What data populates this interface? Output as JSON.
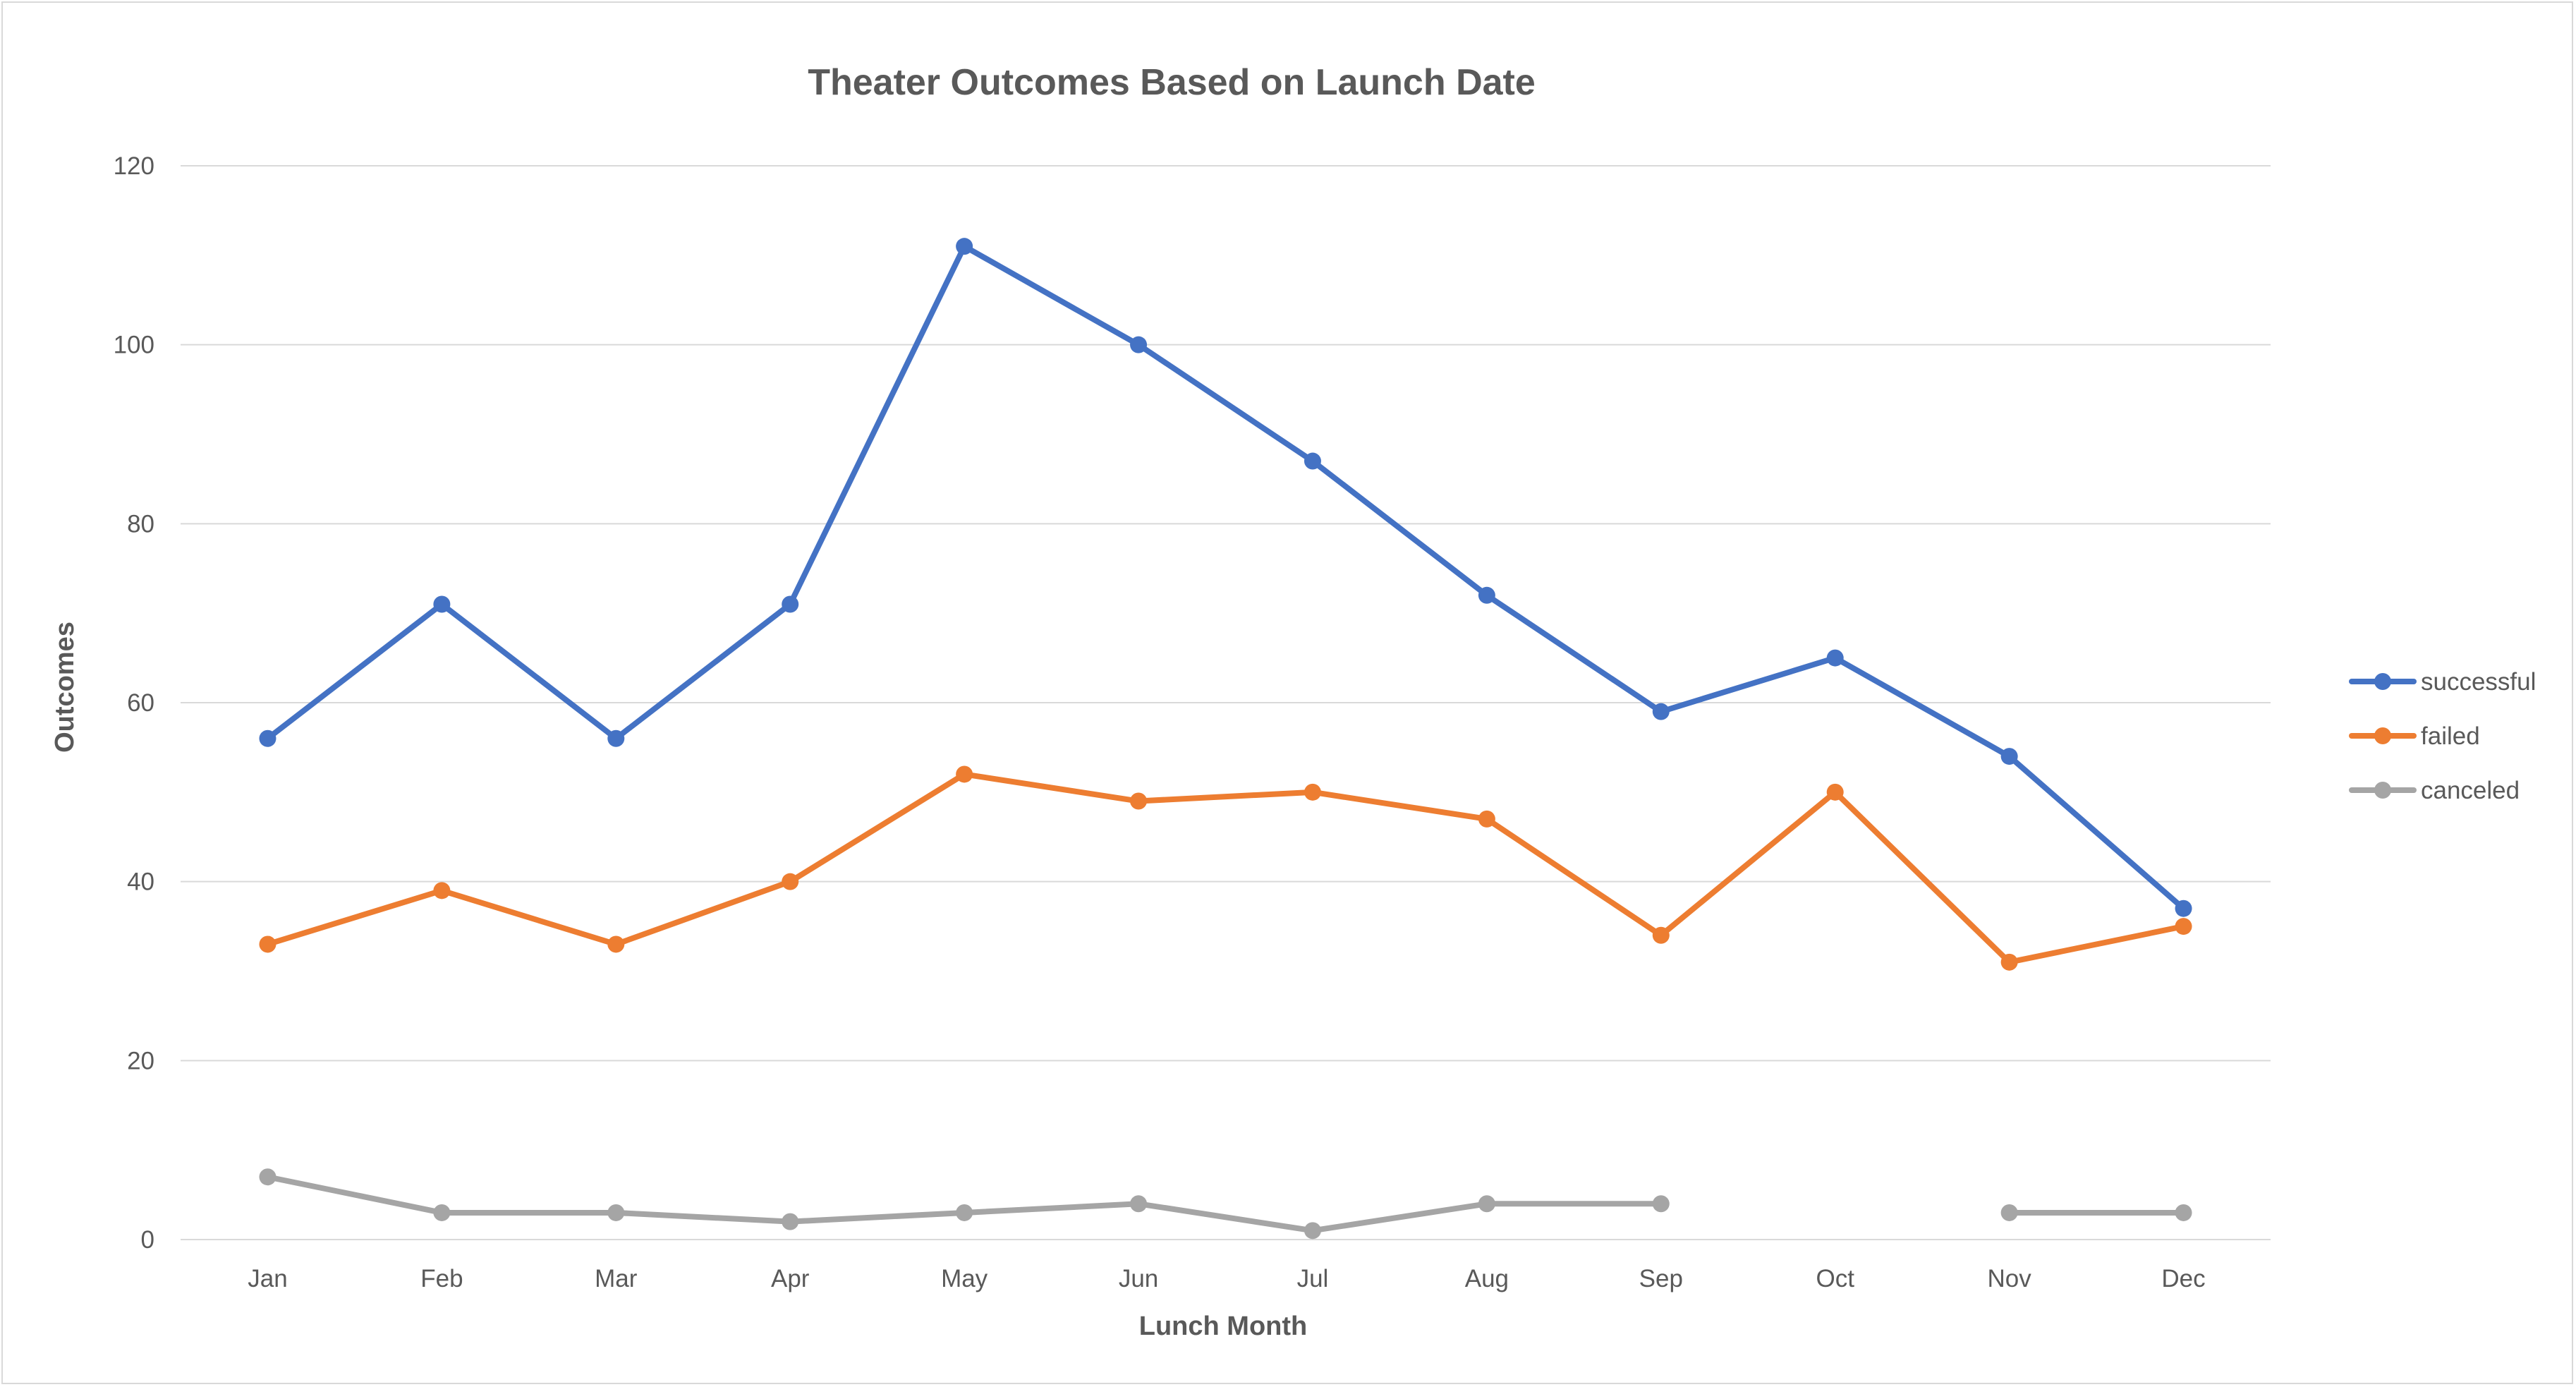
{
  "chart_data": {
    "type": "line",
    "title": "Theater Outcomes Based on Launch Date",
    "xlabel": "Lunch Month",
    "ylabel": "Outcomes",
    "categories": [
      "Jan",
      "Feb",
      "Mar",
      "Apr",
      "May",
      "Jun",
      "Jul",
      "Aug",
      "Sep",
      "Oct",
      "Nov",
      "Dec"
    ],
    "series": [
      {
        "name": "successful",
        "color": "#4472c4",
        "values": [
          56,
          71,
          56,
          71,
          111,
          100,
          87,
          72,
          59,
          65,
          54,
          37
        ]
      },
      {
        "name": "failed",
        "color": "#ed7d31",
        "values": [
          33,
          39,
          33,
          40,
          52,
          49,
          50,
          47,
          34,
          50,
          31,
          35
        ]
      },
      {
        "name": "canceled",
        "color": "#a5a5a5",
        "values": [
          7,
          3,
          3,
          2,
          3,
          4,
          1,
          4,
          4,
          null,
          3,
          3
        ]
      }
    ],
    "ylim": [
      0,
      120
    ],
    "yticks": [
      0,
      20,
      40,
      60,
      80,
      100,
      120
    ],
    "grid": true,
    "legend_position": "right",
    "gridline_color": "#d9d9d9"
  }
}
